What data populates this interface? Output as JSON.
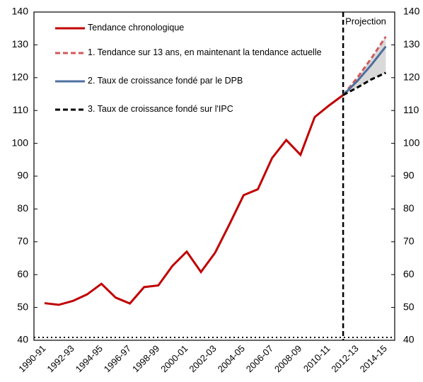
{
  "chart_data": {
    "type": "line",
    "categories": [
      "1990-91",
      null,
      "1992-93",
      null,
      "1994-95",
      null,
      "1996-97",
      null,
      "1998-99",
      null,
      "2000-01",
      null,
      "2002-03",
      null,
      "2004-05",
      null,
      "2006-07",
      null,
      "2008-09",
      null,
      "2010-11",
      null,
      "2012-13",
      null,
      "2014-15"
    ],
    "series": [
      {
        "name": "Tendance chronologique",
        "color": "#c00000",
        "dash": "solid",
        "values": [
          51.3,
          50.8,
          52,
          54,
          57.2,
          53,
          51.2,
          56.2,
          56.7,
          62.7,
          67,
          60.8,
          66.7,
          75.3,
          84.2,
          86,
          95.5,
          101,
          96.5,
          108,
          111.5,
          114.7,
          null,
          null,
          null
        ]
      },
      {
        "name": "1. Tendance sur 13 ans, en maintenant la tendance actuelle",
        "color": "#d05a5a",
        "dash": "dashed",
        "values": [
          null,
          null,
          null,
          null,
          null,
          null,
          null,
          null,
          null,
          null,
          null,
          null,
          null,
          null,
          null,
          null,
          null,
          null,
          null,
          null,
          null,
          114.7,
          120,
          126,
          132.5
        ]
      },
      {
        "name": "2. Taux de croissance fondé par le DPB",
        "color": "#4f6fa0",
        "dash": "solid",
        "values": [
          null,
          null,
          null,
          null,
          null,
          null,
          null,
          null,
          null,
          null,
          null,
          null,
          null,
          null,
          null,
          null,
          null,
          null,
          null,
          null,
          null,
          114.7,
          119,
          124,
          129.5
        ]
      },
      {
        "name": "3. Taux de croissance fondé sur l'IPC",
        "color": "#000000",
        "dash": "dashed",
        "values": [
          null,
          null,
          null,
          null,
          null,
          null,
          null,
          null,
          null,
          null,
          null,
          null,
          null,
          null,
          null,
          null,
          null,
          null,
          null,
          null,
          null,
          114.7,
          117,
          119.5,
          121.5
        ]
      }
    ],
    "annotation": "Projection",
    "ylim": [
      40,
      140
    ],
    "yticks": [
      40,
      50,
      60,
      70,
      80,
      90,
      100,
      110,
      120,
      130,
      140
    ],
    "y2lim": [
      40,
      140
    ],
    "y2ticks": [
      40,
      50,
      60,
      70,
      80,
      90,
      100,
      110,
      120,
      130,
      140
    ],
    "grid": false,
    "legend": "upper left"
  }
}
